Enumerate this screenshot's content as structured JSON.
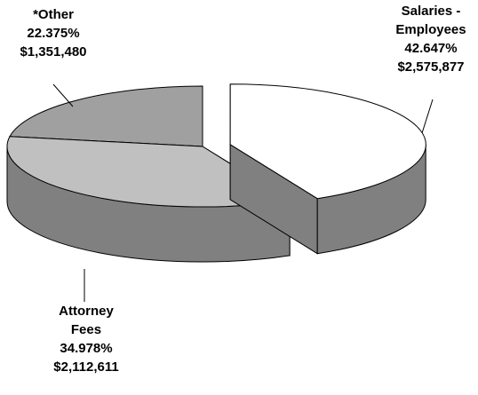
{
  "chart_data": {
    "type": "pie",
    "categories": [
      "Salaries - Employees",
      "Attorney Fees",
      "*Other"
    ],
    "values": [
      42.647,
      34.978,
      22.375
    ],
    "value_labels": [
      "42.647%",
      "34.978%",
      "22.375%"
    ],
    "amounts": [
      2575877,
      2112611,
      1351480
    ],
    "amount_labels": [
      "$2,575,877",
      "$2,112,611",
      "$1,351,480"
    ],
    "colors": [
      "#ffffff",
      "#c0c0c0",
      "#a0a0a0"
    ],
    "side_colors": [
      "#808080",
      "#808080",
      "#606060"
    ]
  }
}
